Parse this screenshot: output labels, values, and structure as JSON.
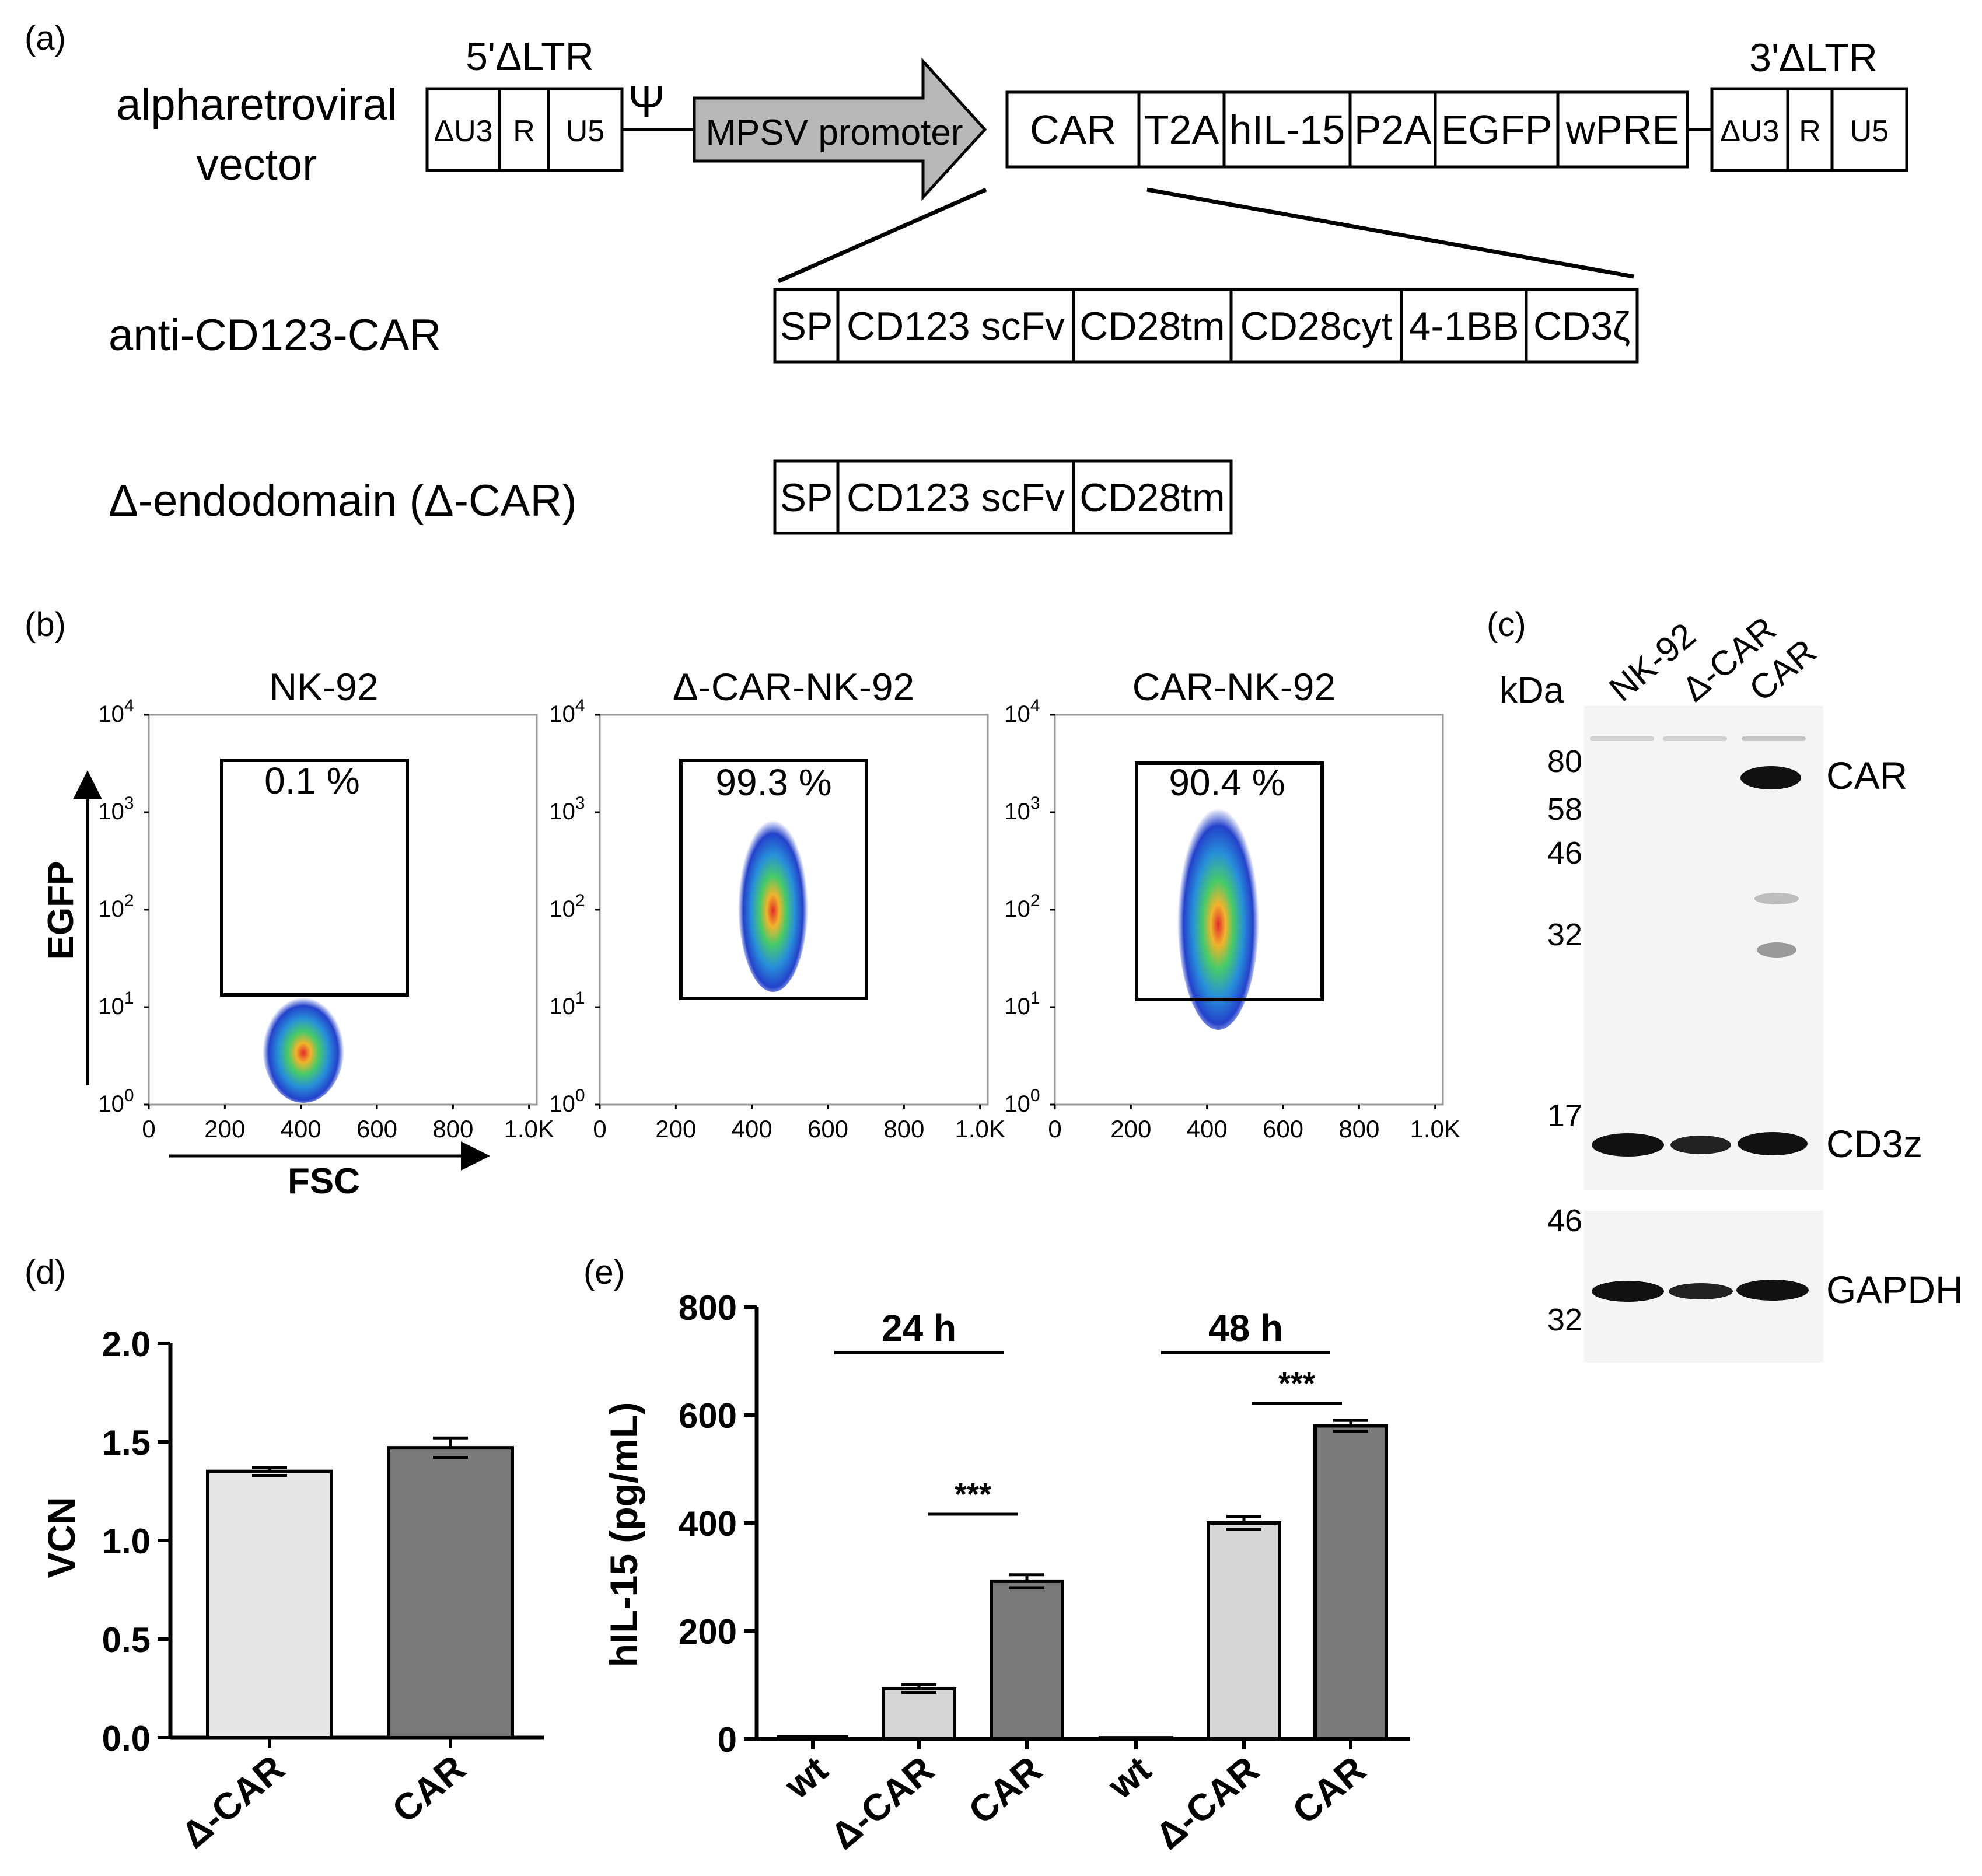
{
  "panel_labels": {
    "a": "(a)",
    "b": "(b)",
    "c": "(c)",
    "d": "(d)",
    "e": "(e)"
  },
  "panel_a": {
    "vector_label_line1": "alpharetroviral",
    "vector_label_line2": "vector",
    "ltr5_title": "5'ΔLTR",
    "ltr3_title": "3'ΔLTR",
    "ltr_boxes": [
      "ΔU3",
      "R",
      "U5"
    ],
    "psi": "Ψ",
    "promoter": "MPSV promoter",
    "cassette": [
      "CAR",
      "T2A",
      "hIL-15",
      "P2A",
      "EGFP",
      "wPRE"
    ],
    "car_label": "anti-CD123-CAR",
    "car_domains": [
      "SP",
      "CD123 scFv",
      "CD28tm",
      "CD28cyt",
      "4-1BB",
      "CD3ζ"
    ],
    "dcar_label": "Δ-endodomain (Δ-CAR)",
    "dcar_domains": [
      "SP",
      "CD123 scFv",
      "CD28tm"
    ]
  },
  "panel_b": {
    "plots": [
      {
        "title": "NK-92",
        "gate_percent": "0.1 %"
      },
      {
        "title": "Δ-CAR-NK-92",
        "gate_percent": "99.3 %"
      },
      {
        "title": "CAR-NK-92",
        "gate_percent": "90.4 %"
      }
    ],
    "y_axis_label": "EGFP",
    "x_axis_label": "FSC",
    "y_ticks": [
      {
        "base": "10",
        "exp": "4"
      },
      {
        "base": "10",
        "exp": "3"
      },
      {
        "base": "10",
        "exp": "2"
      },
      {
        "base": "10",
        "exp": "1"
      },
      {
        "base": "10",
        "exp": "0"
      }
    ],
    "x_ticks": [
      "0",
      "200",
      "400",
      "600",
      "800",
      "1.0K"
    ]
  },
  "panel_c": {
    "unit": "kDa",
    "lanes": [
      "NK-92",
      "Δ-CAR",
      "CAR"
    ],
    "markers_top": [
      "80",
      "58",
      "46",
      "32",
      "17"
    ],
    "markers_bottom": [
      "46",
      "32"
    ],
    "band_labels": [
      "CAR",
      "CD3z",
      "GAPDH"
    ]
  },
  "chart_data": [
    {
      "type": "bar",
      "panel": "(d)",
      "categories": [
        "Δ-CAR",
        "CAR"
      ],
      "values": [
        1.35,
        1.47
      ],
      "errors": [
        0.02,
        0.05
      ],
      "ylabel": "VCN",
      "ylim": [
        0,
        2.0
      ],
      "yticks": [
        "0.0",
        "0.5",
        "1.0",
        "1.5",
        "2.0"
      ],
      "colors": [
        "#e6e6e6",
        "#7a7a7a"
      ]
    },
    {
      "type": "bar",
      "panel": "(e)",
      "categories": [
        "wt",
        "Δ-CAR",
        "CAR",
        "wt",
        "Δ-CAR",
        "CAR"
      ],
      "groups": [
        "24 h",
        "48 h"
      ],
      "values": [
        0,
        93,
        292,
        2,
        400,
        580
      ],
      "errors": [
        0,
        7,
        12,
        0,
        12,
        10
      ],
      "ylabel": "hIL-15 (pg/mL)",
      "ylim": [
        0,
        800
      ],
      "yticks": [
        "0",
        "200",
        "400",
        "600",
        "800"
      ],
      "significance": [
        "***",
        "***"
      ],
      "colors": [
        "#ffffff",
        "#d6d6d6",
        "#7a7a7a"
      ]
    }
  ]
}
